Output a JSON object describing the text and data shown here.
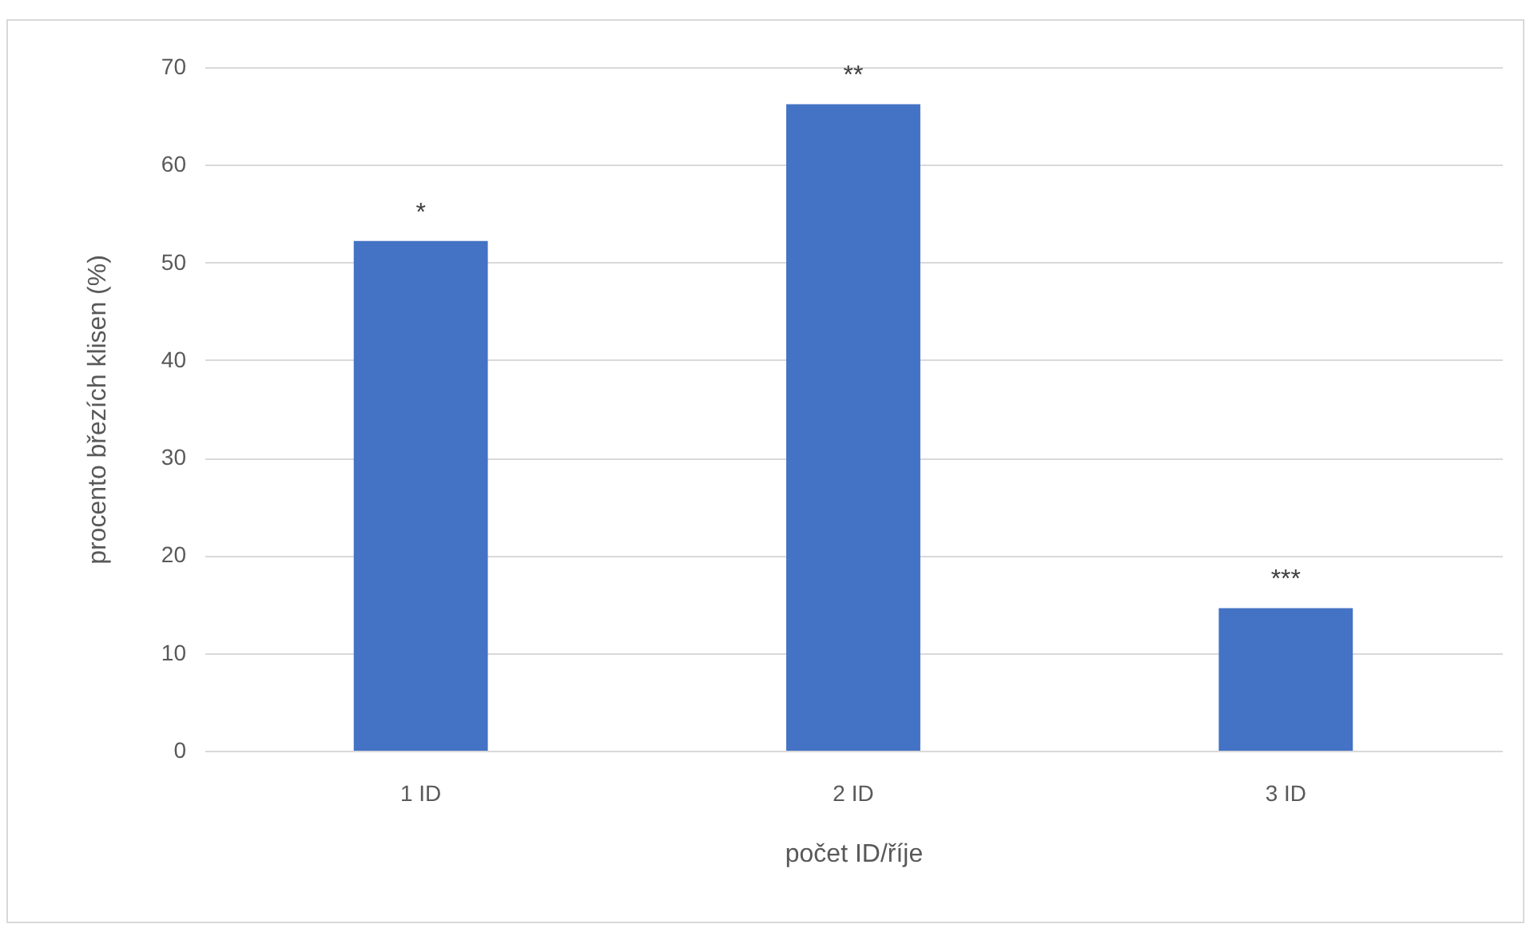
{
  "chart_data": {
    "type": "bar",
    "xlabel": "počet ID/říje",
    "ylabel": "procento březích klisen (%)",
    "categories": [
      "1 ID",
      "2 ID",
      "3 ID"
    ],
    "values": [
      52.2,
      66.2,
      14.6
    ],
    "color": "#4472c4",
    "ylim": [
      0,
      70
    ],
    "yticks": [
      0,
      10,
      20,
      30,
      40,
      50,
      60,
      70
    ],
    "grid": "y",
    "annotations": [
      {
        "text": "*",
        "x": "1 ID",
        "y": 52.2
      },
      {
        "text": "**",
        "x": "2 ID",
        "y": 66.2
      },
      {
        "text": "***",
        "x": "3 ID",
        "y": 14.6
      }
    ]
  }
}
